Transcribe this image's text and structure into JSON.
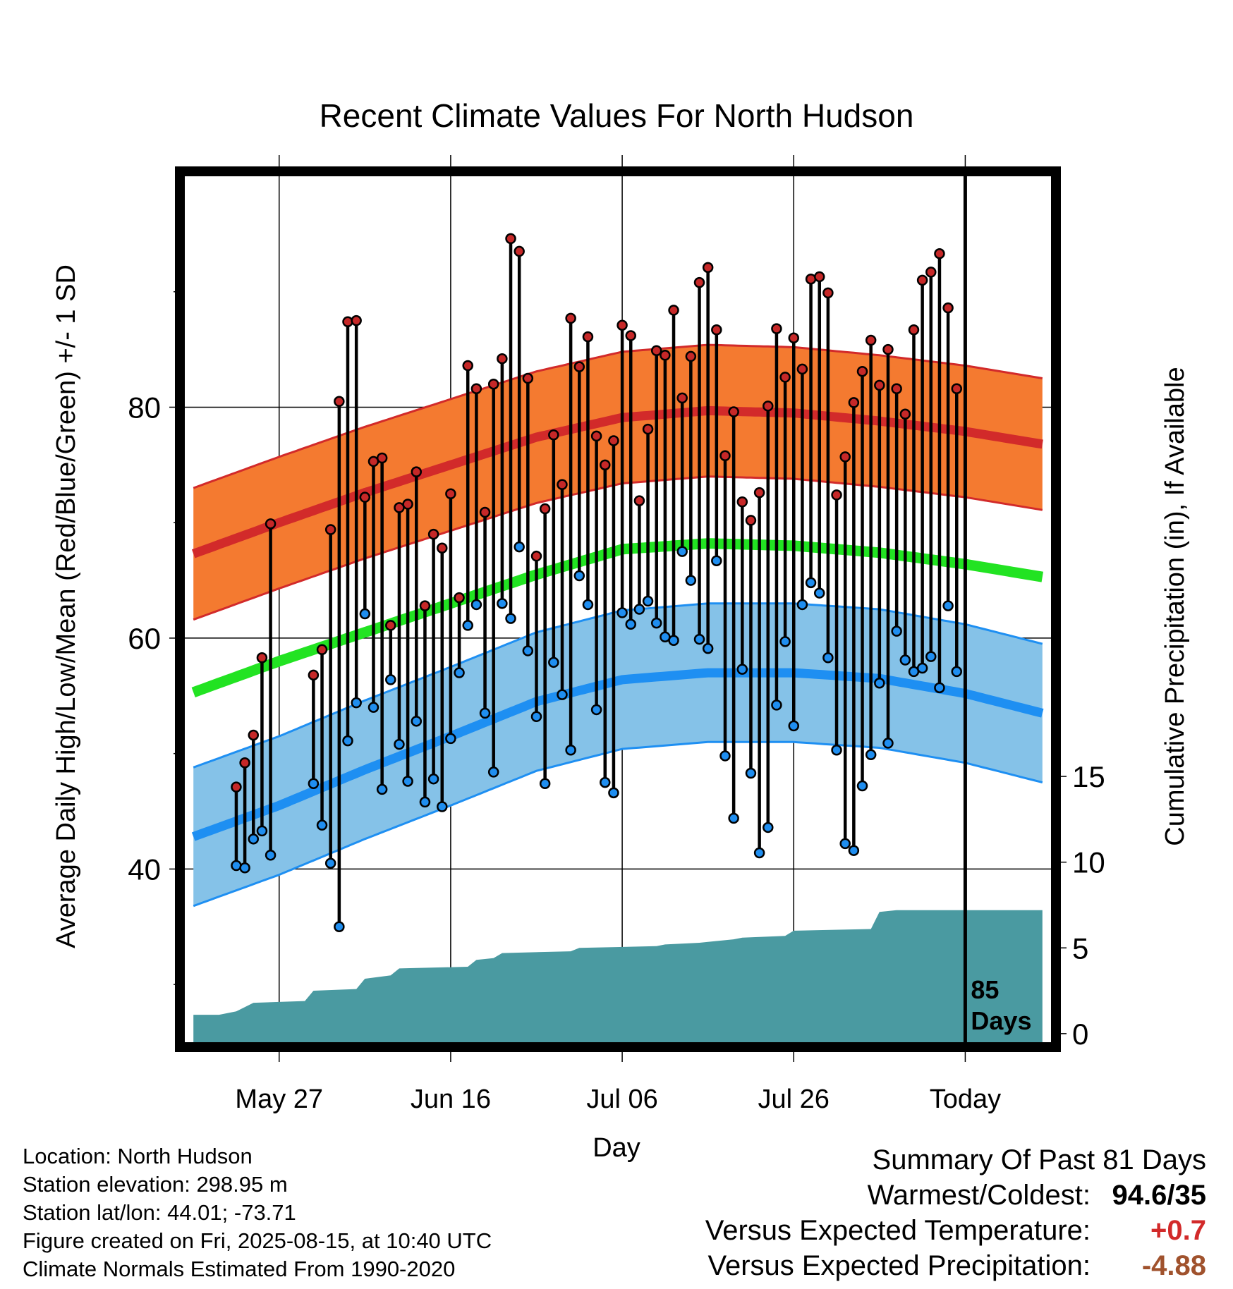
{
  "chart_data": {
    "type": "line",
    "title": "Recent Climate Values For North Hudson",
    "xlabel": "Day",
    "ylabel": "Average Daily High/Low/Mean (Red/Blue/Green) +/- 1 SD",
    "y2label": "Cumulative Precipitation (in), If Available",
    "x_tick_labels": [
      "May 27",
      "Jun 16",
      "Jul 06",
      "Jul 26",
      "Today"
    ],
    "x_tick_days": [
      10,
      30,
      50,
      70,
      90
    ],
    "x_range_days": [
      -1,
      100
    ],
    "y_ticks": [
      40,
      60,
      80
    ],
    "y_range": [
      25,
      100
    ],
    "y2_ticks": [
      "0",
      "5",
      "10",
      "15"
    ],
    "y2_tick_values": [
      0,
      5,
      10,
      15
    ],
    "y2_range": [
      -0.5,
      50
    ],
    "today_label": [
      "85",
      "Days"
    ],
    "normals": {
      "high_mean": [
        [
          0,
          67.3
        ],
        [
          10,
          70.0
        ],
        [
          20,
          72.6
        ],
        [
          30,
          75.0
        ],
        [
          40,
          77.4
        ],
        [
          50,
          79.1
        ],
        [
          60,
          79.7
        ],
        [
          70,
          79.5
        ],
        [
          80,
          78.8
        ],
        [
          90,
          77.9
        ],
        [
          99,
          76.8
        ]
      ],
      "high_sd": 5.7,
      "low_mean": [
        [
          0,
          42.8
        ],
        [
          10,
          45.5
        ],
        [
          20,
          48.6
        ],
        [
          30,
          51.5
        ],
        [
          40,
          54.5
        ],
        [
          50,
          56.4
        ],
        [
          60,
          57.0
        ],
        [
          70,
          57.0
        ],
        [
          80,
          56.5
        ],
        [
          90,
          55.2
        ],
        [
          99,
          53.5
        ]
      ],
      "low_sd": 6.0,
      "mean_mean": [
        [
          0,
          55.3
        ],
        [
          10,
          58.0
        ],
        [
          20,
          60.5
        ],
        [
          30,
          63.0
        ],
        [
          40,
          65.5
        ],
        [
          50,
          67.7
        ],
        [
          60,
          68.2
        ],
        [
          70,
          68.0
        ],
        [
          80,
          67.4
        ],
        [
          90,
          66.4
        ],
        [
          99,
          65.3
        ]
      ]
    },
    "daily": [
      {
        "day": 5,
        "high": 47.1,
        "low": 40.3
      },
      {
        "day": 6,
        "high": 49.2,
        "low": 40.1
      },
      {
        "day": 7,
        "high": 51.6,
        "low": 42.6
      },
      {
        "day": 8,
        "high": 58.3,
        "low": 43.3
      },
      {
        "day": 9,
        "high": 69.9,
        "low": 41.2
      },
      {
        "day": 14,
        "high": 56.8,
        "low": 47.4
      },
      {
        "day": 15,
        "high": 59.0,
        "low": 43.8
      },
      {
        "day": 16,
        "high": 69.4,
        "low": 40.5
      },
      {
        "day": 17,
        "high": 80.5,
        "low": 35.0
      },
      {
        "day": 18,
        "high": 87.4,
        "low": 51.1
      },
      {
        "day": 19,
        "high": 87.5,
        "low": 54.4
      },
      {
        "day": 20,
        "high": 72.2,
        "low": 62.1
      },
      {
        "day": 21,
        "high": 75.3,
        "low": 54.0
      },
      {
        "day": 22,
        "high": 75.6,
        "low": 46.9
      },
      {
        "day": 23,
        "high": 61.1,
        "low": 56.4
      },
      {
        "day": 24,
        "high": 71.3,
        "low": 50.8
      },
      {
        "day": 25,
        "high": 71.6,
        "low": 47.6
      },
      {
        "day": 26,
        "high": 74.4,
        "low": 52.8
      },
      {
        "day": 27,
        "high": 62.8,
        "low": 45.8
      },
      {
        "day": 28,
        "high": 69.0,
        "low": 47.8
      },
      {
        "day": 29,
        "high": 67.8,
        "low": 45.4
      },
      {
        "day": 30,
        "high": 72.5,
        "low": 51.3
      },
      {
        "day": 31,
        "high": 63.5,
        "low": 57.0
      },
      {
        "day": 32,
        "high": 83.6,
        "low": 61.1
      },
      {
        "day": 33,
        "high": 81.6,
        "low": 62.9
      },
      {
        "day": 34,
        "high": 70.9,
        "low": 53.5
      },
      {
        "day": 35,
        "high": 82.0,
        "low": 48.4
      },
      {
        "day": 36,
        "high": 84.2,
        "low": 63.0
      },
      {
        "day": 37,
        "high": 94.6,
        "low": 61.7
      },
      {
        "day": 38,
        "high": 93.5,
        "low": 67.9
      },
      {
        "day": 39,
        "high": 82.5,
        "low": 58.9
      },
      {
        "day": 40,
        "high": 67.1,
        "low": 53.2
      },
      {
        "day": 41,
        "high": 71.2,
        "low": 47.4
      },
      {
        "day": 42,
        "high": 77.6,
        "low": 57.9
      },
      {
        "day": 43,
        "high": 73.3,
        "low": 55.1
      },
      {
        "day": 44,
        "high": 87.7,
        "low": 50.3
      },
      {
        "day": 45,
        "high": 83.5,
        "low": 65.4
      },
      {
        "day": 46,
        "high": 86.1,
        "low": 62.9
      },
      {
        "day": 47,
        "high": 77.5,
        "low": 53.8
      },
      {
        "day": 48,
        "high": 75.0,
        "low": 47.5
      },
      {
        "day": 49,
        "high": 77.1,
        "low": 46.6
      },
      {
        "day": 50,
        "high": 87.1,
        "low": 62.2
      },
      {
        "day": 51,
        "high": 86.2,
        "low": 61.2
      },
      {
        "day": 52,
        "high": 71.9,
        "low": 62.5
      },
      {
        "day": 53,
        "high": 78.1,
        "low": 63.2
      },
      {
        "day": 54,
        "high": 84.9,
        "low": 61.3
      },
      {
        "day": 55,
        "high": 84.5,
        "low": 60.1
      },
      {
        "day": 56,
        "high": 88.4,
        "low": 59.8
      },
      {
        "day": 57,
        "high": 80.8,
        "low": 67.5
      },
      {
        "day": 58,
        "high": 84.4,
        "low": 65.0
      },
      {
        "day": 59,
        "high": 90.8,
        "low": 59.9
      },
      {
        "day": 60,
        "high": 92.1,
        "low": 59.1
      },
      {
        "day": 61,
        "high": 86.7,
        "low": 66.7
      },
      {
        "day": 62,
        "high": 75.8,
        "low": 49.8
      },
      {
        "day": 63,
        "high": 79.6,
        "low": 44.4
      },
      {
        "day": 64,
        "high": 71.8,
        "low": 57.3
      },
      {
        "day": 65,
        "high": 70.2,
        "low": 48.3
      },
      {
        "day": 66,
        "high": 72.6,
        "low": 41.4
      },
      {
        "day": 67,
        "high": 80.1,
        "low": 43.6
      },
      {
        "day": 68,
        "high": 86.8,
        "low": 54.2
      },
      {
        "day": 69,
        "high": 82.6,
        "low": 59.7
      },
      {
        "day": 70,
        "high": 86.0,
        "low": 52.4
      },
      {
        "day": 71,
        "high": 83.3,
        "low": 62.9
      },
      {
        "day": 72,
        "high": 91.1,
        "low": 64.8
      },
      {
        "day": 73,
        "high": 91.3,
        "low": 63.9
      },
      {
        "day": 74,
        "high": 89.9,
        "low": 58.3
      },
      {
        "day": 75,
        "high": 72.4,
        "low": 50.3
      },
      {
        "day": 76,
        "high": 75.7,
        "low": 42.2
      },
      {
        "day": 77,
        "high": 80.4,
        "low": 41.6
      },
      {
        "day": 78,
        "high": 83.1,
        "low": 47.2
      },
      {
        "day": 79,
        "high": 85.8,
        "low": 49.9
      },
      {
        "day": 80,
        "high": 81.9,
        "low": 56.1
      },
      {
        "day": 81,
        "high": 85.0,
        "low": 50.9
      },
      {
        "day": 82,
        "high": 81.6,
        "low": 60.6
      },
      {
        "day": 83,
        "high": 79.4,
        "low": 58.1
      },
      {
        "day": 84,
        "high": 86.7,
        "low": 57.1
      },
      {
        "day": 85,
        "high": 91.0,
        "low": 57.4
      },
      {
        "day": 86,
        "high": 91.7,
        "low": 58.4
      },
      {
        "day": 87,
        "high": 93.3,
        "low": 55.7
      },
      {
        "day": 88,
        "high": 88.6,
        "low": 62.8
      },
      {
        "day": 89,
        "high": 81.6,
        "low": 57.1
      }
    ],
    "precip_cumulative": [
      [
        0,
        1.1
      ],
      [
        3,
        1.1
      ],
      [
        5,
        1.3
      ],
      [
        7,
        1.8
      ],
      [
        13,
        1.9
      ],
      [
        14,
        2.5
      ],
      [
        19,
        2.6
      ],
      [
        20,
        3.2
      ],
      [
        23,
        3.4
      ],
      [
        24,
        3.8
      ],
      [
        32,
        3.9
      ],
      [
        33,
        4.3
      ],
      [
        35,
        4.4
      ],
      [
        36,
        4.7
      ],
      [
        44,
        4.8
      ],
      [
        45,
        5.0
      ],
      [
        54,
        5.1
      ],
      [
        55,
        5.2
      ],
      [
        59,
        5.3
      ],
      [
        63,
        5.5
      ],
      [
        64,
        5.6
      ],
      [
        69,
        5.7
      ],
      [
        70,
        6.0
      ],
      [
        79,
        6.1
      ],
      [
        80,
        7.1
      ],
      [
        82,
        7.2
      ],
      [
        99,
        7.2
      ]
    ]
  },
  "colors": {
    "high_band": "#f47a30",
    "high_line": "#d22a2a",
    "mean_line": "#22e322",
    "low_band": "#85c2e8",
    "low_line": "#1e8ff2",
    "precip_fill": "#4a9aa1",
    "high_dot": "#c62828",
    "low_dot": "#1f8ef0"
  },
  "info": {
    "location": "Location: North Hudson",
    "elevation": "Station elevation: 298.95 m",
    "latlon": "Station lat/lon: 44.01; -73.71",
    "created": "Figure created on Fri, 2025-08-15, at 10:40 UTC",
    "normals": "Climate Normals Estimated From 1990-2020"
  },
  "summary": {
    "title": "Summary Of Past 81 Days",
    "warmest_label": "Warmest/Coldest:",
    "warmest_value": "94.6/35",
    "temp_label": "Versus Expected Temperature:",
    "temp_value": "+0.7",
    "temp_color": "#d22a2a",
    "precip_label": "Versus Expected Precipitation:",
    "precip_value": "-4.88",
    "precip_color": "#a0522d"
  }
}
